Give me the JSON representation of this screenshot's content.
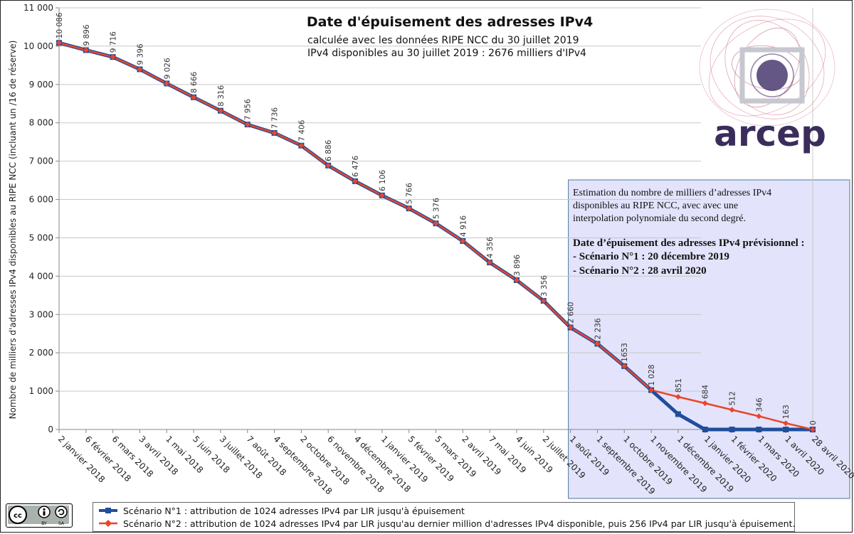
{
  "colors": {
    "scenario1": "#1f4e9a",
    "scenario2": "#e8462a",
    "estimation_box_fill": "#e3e3fb",
    "estimation_box_border": "#4a7a9a",
    "grid": "#c8c8c8",
    "logo": "#3a2d5c"
  },
  "logo": {
    "text": "arcep"
  },
  "license": {
    "cc": "cc",
    "by": "BY",
    "sa": "SA"
  },
  "estimation_box": {
    "line1": "Estimation du nombre de milliers d’adresses IPv4",
    "line2": "disponibles au RIPE NCC, avec avec une",
    "line3": "interpolation polynomiale du second degré.",
    "heading": "Date d’épuisement des adresses IPv4 prévisionnel :",
    "scenario1": "- Scénario N°1 : 20 décembre 2019",
    "scenario2": "- Scénario N°2 : 28 avril 2020"
  },
  "chart_data": {
    "type": "line",
    "title": "Date d'épuisement des adresses IPv4",
    "subtitle_line1": "calculée avec les données RIPE NCC du 30 juillet 2019",
    "subtitle_line2": "IPv4 disponibles au 30 juillet 2019 : 2676 milliers d'IPv4",
    "xlabel": "",
    "ylabel": "Nombre de milliers d'adresses IPv4 disponibles au RIPE NCC (incluant un /16 de réserve)",
    "ylim": [
      0,
      11000
    ],
    "yticks": [
      0,
      1000,
      2000,
      3000,
      4000,
      5000,
      6000,
      7000,
      8000,
      9000,
      10000,
      11000
    ],
    "ytick_labels": [
      "0",
      "1 000",
      "2 000",
      "3 000",
      "4 000",
      "5 000",
      "6 000",
      "7 000",
      "8 000",
      "9 000",
      "10 000",
      "11 000"
    ],
    "grid": true,
    "legend_position": "bottom",
    "categories": [
      "2 janvier 2018",
      "6 février 2018",
      "6 mars 2018",
      "3 avril 2018",
      "1 mai 2018",
      "5 juin 2018",
      "3 juillet 2018",
      "7 août 2018",
      "4 septembre 2018",
      "2 octobre 2018",
      "6 novembre 2018",
      "4 décembre 2018",
      "1 janvier 2019",
      "5 février 2019",
      "5 mars 2019",
      "2 avril 2019",
      "7 mai 2019",
      "4 juin 2019",
      "2 juillet 2019",
      "1 août 2019",
      "1 septembre 2019",
      "1 octobre 2019",
      "1 novembre 2019",
      "1 décembre 2019",
      "1 janvier 2020",
      "1 février 2020",
      "1 mars 2020",
      "1 avril 2020",
      "28 avril 2020"
    ],
    "series": [
      {
        "name": "Scénario N°1 : attribution de 1024 adresses IPv4 par LIR jusqu'à épuisement",
        "values": [
          10086,
          9896,
          9716,
          9396,
          9026,
          8666,
          8316,
          7956,
          7736,
          7406,
          6886,
          6476,
          6106,
          5766,
          5376,
          4916,
          4356,
          3896,
          3356,
          2660,
          2236,
          1653,
          1028,
          400,
          0,
          0,
          0,
          0,
          0
        ]
      },
      {
        "name": "Scénario N°2 : attribution de 1024 adresses IPv4 par LIR jusqu'au dernier million d'adresses IPv4 disponible, puis 256 IPv4 par LIR jusqu'à épuisement.",
        "values": [
          10086,
          9896,
          9716,
          9396,
          9026,
          8666,
          8316,
          7956,
          7736,
          7406,
          6886,
          6476,
          6106,
          5766,
          5376,
          4916,
          4356,
          3896,
          3356,
          2660,
          2236,
          1653,
          1028,
          851,
          684,
          512,
          346,
          163,
          0
        ]
      }
    ],
    "data_labels": [
      "10 086",
      "9 896",
      "9 716",
      "9 396",
      "9 026",
      "8 666",
      "8 316",
      "7 956",
      "7 736",
      "7 406",
      "6 886",
      "6 476",
      "6 106",
      "5 766",
      "5 376",
      "4 916",
      "4 356",
      "3 896",
      "3 356",
      "2 660",
      "2 236",
      "1653",
      "1 028",
      "851",
      "684",
      "512",
      "346",
      "163",
      "0"
    ],
    "estimation_region_start_category": "1 août 2019"
  }
}
